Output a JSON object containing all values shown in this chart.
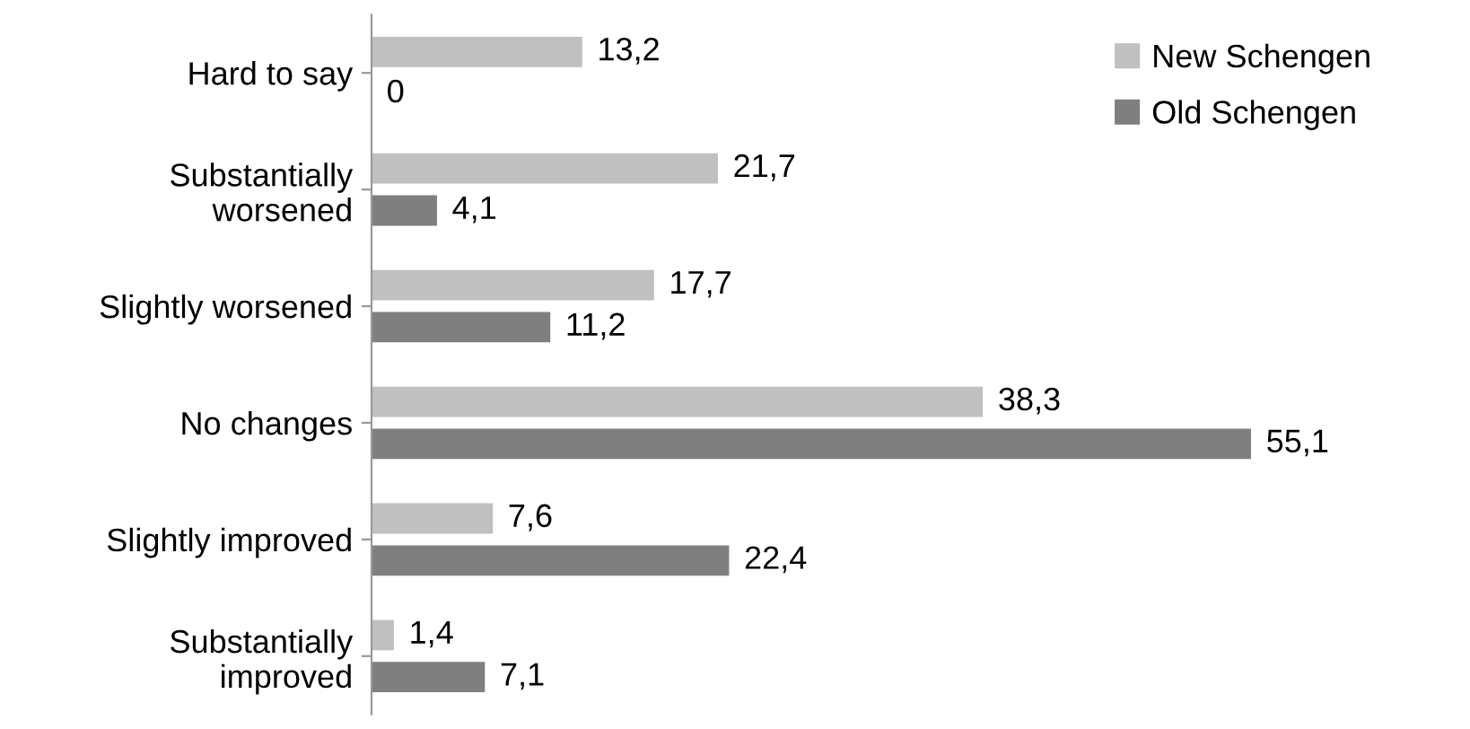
{
  "chart_data": {
    "type": "bar",
    "orientation": "horizontal",
    "categories": [
      "Hard to say",
      "Substantially\nworsened",
      "Slightly worsened",
      "No changes",
      "Slightly improved",
      "Substantially\nimproved"
    ],
    "series": [
      {
        "name": "New Schengen",
        "color": "#c0c0c0",
        "values": [
          13.2,
          21.7,
          17.7,
          38.3,
          7.6,
          1.4
        ],
        "value_labels": [
          "13,2",
          "21,7",
          "17,7",
          "38,3",
          "7,6",
          "1,4"
        ]
      },
      {
        "name": "Old Schengen",
        "color": "#7f7f7f",
        "values": [
          0,
          4.1,
          11.2,
          55.1,
          22.4,
          7.1
        ],
        "value_labels": [
          "0",
          "4,1",
          "11,2",
          "55,1",
          "22,4",
          "7,1"
        ]
      }
    ],
    "legend": "top right",
    "grid": false
  }
}
